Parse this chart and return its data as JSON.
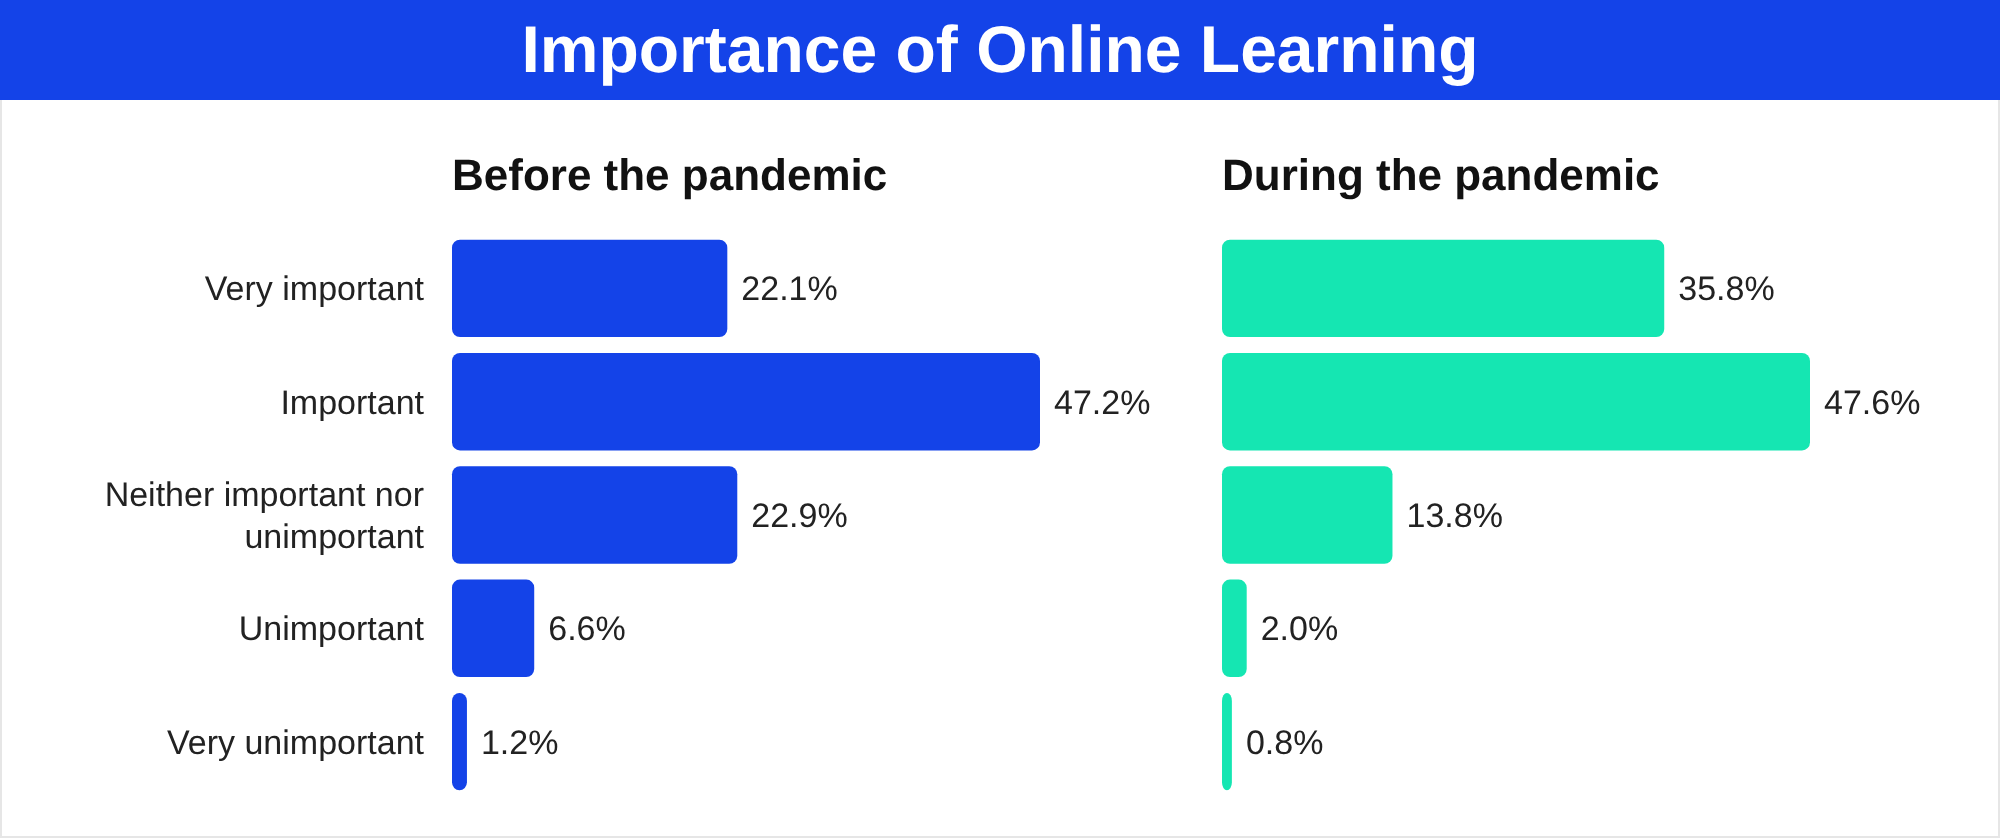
{
  "chart_data": [
    {
      "type": "bar",
      "orientation": "horizontal",
      "title": "Importance of Online Learning",
      "subtitle": "Before the pandemic",
      "categories": [
        "Very important",
        "Important",
        "Neither important nor unimportant",
        "Unimportant",
        "Very unimportant"
      ],
      "values": [
        22.1,
        47.2,
        22.9,
        6.6,
        1.2
      ],
      "value_labels": [
        "22.1%",
        "47.2%",
        "22.9%",
        "6.6%",
        "1.2%"
      ],
      "color": "#1443e8",
      "tick_labels": "y"
    },
    {
      "type": "bar",
      "orientation": "horizontal",
      "subtitle": "During the pandemic",
      "categories": [
        null,
        null,
        null,
        null,
        null
      ],
      "values": [
        35.8,
        47.6,
        13.8,
        2.0,
        0.8
      ],
      "value_labels": [
        "35.8%",
        "47.6%",
        "13.8%",
        "2.0%",
        "0.8%"
      ],
      "color": "#15e6b2",
      "tick_labels": false
    }
  ]
}
